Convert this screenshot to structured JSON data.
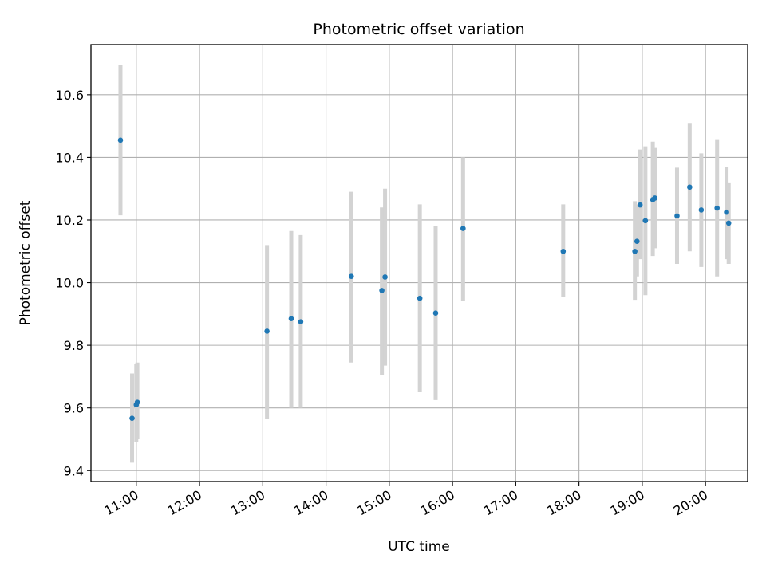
{
  "chart_data": {
    "type": "scatter",
    "title": "Photometric offset variation",
    "xlabel": "UTC time",
    "ylabel": "Photometric offset",
    "xlim": [
      "10:17",
      "20:40"
    ],
    "ylim": [
      9.365,
      10.76
    ],
    "x_ticks": [
      "11:00",
      "12:00",
      "13:00",
      "14:00",
      "15:00",
      "16:00",
      "17:00",
      "18:00",
      "19:00",
      "20:00"
    ],
    "y_ticks": [
      9.4,
      9.6,
      9.8,
      10.0,
      10.2,
      10.4,
      10.6
    ],
    "grid": true,
    "colors": {
      "points": "#1f77b4",
      "errorbars": "#d3d3d3",
      "grid": "#b0b0b0"
    },
    "points": [
      {
        "x": "10:45",
        "y": 10.455,
        "y_low": 10.215,
        "y_high": 10.695
      },
      {
        "x": "10:56",
        "y": 9.567,
        "y_low": 9.425,
        "y_high": 9.71
      },
      {
        "x": "11:00",
        "y": 9.61,
        "y_low": 9.49,
        "y_high": 9.74
      },
      {
        "x": "11:01",
        "y": 9.618,
        "y_low": 9.5,
        "y_high": 9.745
      },
      {
        "x": "13:04",
        "y": 9.845,
        "y_low": 9.565,
        "y_high": 10.12
      },
      {
        "x": "13:27",
        "y": 9.885,
        "y_low": 9.6,
        "y_high": 10.165
      },
      {
        "x": "13:36",
        "y": 9.875,
        "y_low": 9.6,
        "y_high": 10.152
      },
      {
        "x": "14:24",
        "y": 10.02,
        "y_low": 9.745,
        "y_high": 10.29
      },
      {
        "x": "14:53",
        "y": 9.975,
        "y_low": 9.705,
        "y_high": 10.24
      },
      {
        "x": "14:56",
        "y": 10.018,
        "y_low": 9.735,
        "y_high": 10.3
      },
      {
        "x": "15:29",
        "y": 9.95,
        "y_low": 9.65,
        "y_high": 10.25
      },
      {
        "x": "15:44",
        "y": 9.903,
        "y_low": 9.625,
        "y_high": 10.182
      },
      {
        "x": "16:10",
        "y": 10.173,
        "y_low": 9.943,
        "y_high": 10.4
      },
      {
        "x": "17:45",
        "y": 10.1,
        "y_low": 9.953,
        "y_high": 10.25
      },
      {
        "x": "18:53",
        "y": 10.1,
        "y_low": 9.945,
        "y_high": 10.26
      },
      {
        "x": "18:55",
        "y": 10.132,
        "y_low": 10.02,
        "y_high": 10.25
      },
      {
        "x": "18:58",
        "y": 10.248,
        "y_low": 10.075,
        "y_high": 10.425
      },
      {
        "x": "19:03",
        "y": 10.198,
        "y_low": 9.96,
        "y_high": 10.435
      },
      {
        "x": "19:10",
        "y": 10.265,
        "y_low": 10.085,
        "y_high": 10.45
      },
      {
        "x": "19:12",
        "y": 10.27,
        "y_low": 10.11,
        "y_high": 10.43
      },
      {
        "x": "19:33",
        "y": 10.213,
        "y_low": 10.06,
        "y_high": 10.367
      },
      {
        "x": "19:45",
        "y": 10.305,
        "y_low": 10.1,
        "y_high": 10.51
      },
      {
        "x": "19:56",
        "y": 10.232,
        "y_low": 10.05,
        "y_high": 10.413
      },
      {
        "x": "20:11",
        "y": 10.238,
        "y_low": 10.02,
        "y_high": 10.458
      },
      {
        "x": "20:20",
        "y": 10.225,
        "y_low": 10.075,
        "y_high": 10.37
      },
      {
        "x": "20:22",
        "y": 10.19,
        "y_low": 10.06,
        "y_high": 10.32
      }
    ]
  }
}
